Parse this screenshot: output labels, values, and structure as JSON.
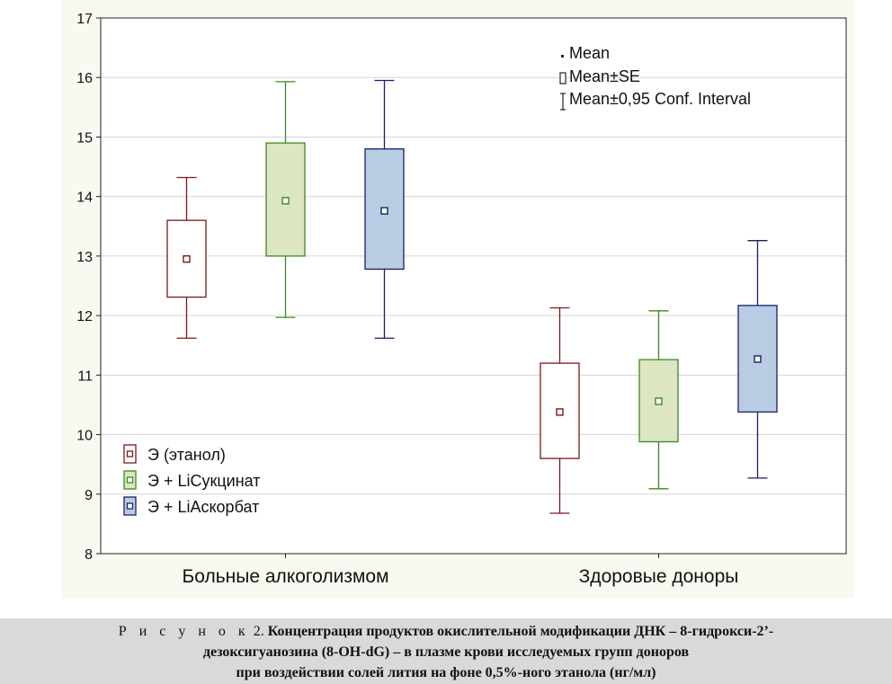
{
  "chart_data": {
    "type": "boxplot",
    "groups": [
      "Больные алкоголизмом",
      "Здоровые доноры"
    ],
    "y_ticks": [
      "8",
      "9",
      "10",
      "11",
      "12",
      "13",
      "14",
      "15",
      "16",
      "17"
    ],
    "ylim": [
      8,
      17
    ],
    "grid": true,
    "series": [
      {
        "name": "Э (этанол)",
        "color": "#7b1818",
        "fill": "#ffffff",
        "mean": [
          12.95,
          10.38
        ],
        "se_low": [
          12.31,
          9.6
        ],
        "se_high": [
          13.6,
          11.2
        ],
        "ci_low": [
          11.62,
          8.68
        ],
        "ci_high": [
          14.32,
          12.13
        ]
      },
      {
        "name": "Э + LiСукцинат",
        "color": "#3a8a22",
        "fill": "#dce6c3",
        "mean": [
          13.93,
          10.56
        ],
        "se_low": [
          13.0,
          9.88
        ],
        "se_high": [
          14.9,
          11.26
        ],
        "ci_low": [
          11.97,
          9.09
        ],
        "ci_high": [
          15.93,
          12.08
        ]
      },
      {
        "name": "Э + LiАскорбат",
        "color": "#1a1f66",
        "fill": "#b8cde4",
        "mean": [
          13.76,
          11.27
        ],
        "se_low": [
          12.78,
          10.38
        ],
        "se_high": [
          14.8,
          12.17
        ],
        "ci_low": [
          11.62,
          9.27
        ],
        "ci_high": [
          15.95,
          13.26
        ]
      }
    ],
    "stat_legend": [
      "Mean",
      "Mean±SE",
      "Mean±0,95 Conf. Interval"
    ],
    "series_legend_placement": "bottom-left",
    "stat_legend_placement": "top-right"
  },
  "caption": {
    "label": "Р и с у н о к",
    "number": "2.",
    "line1": "Концентрация продуктов окислительной модификации ДНК – 8-гидрокси-2’-",
    "line2": "дезоксигуанозина (8-OH-dG) – в плазме крови исследуемых групп доноров",
    "line3": "при воздействии солей лития на фоне 0,5%-ного этанола (нг/мл)"
  }
}
